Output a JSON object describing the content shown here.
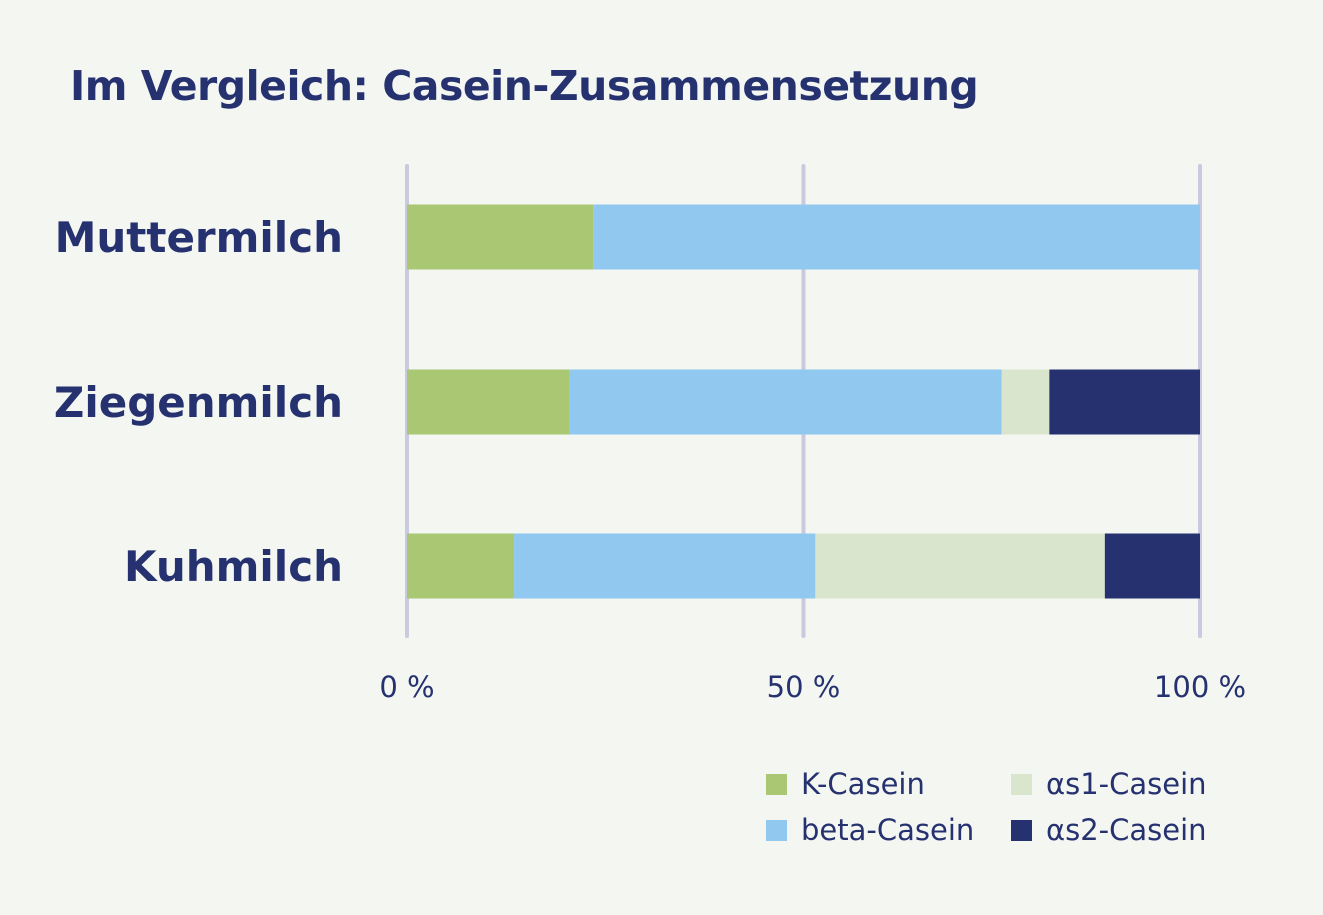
{
  "chart_data": {
    "type": "bar",
    "orientation": "horizontal",
    "stacked": true,
    "title": "Im Vergleich: Casein-Zusammensetzung",
    "categories": [
      "Muttermilch",
      "Ziegenmilch",
      "Kuhmilch"
    ],
    "series": [
      {
        "name": "K-Casein",
        "color": "#aac774",
        "values": [
          23.5,
          20.5,
          13.5
        ]
      },
      {
        "name": "beta-Casein",
        "color": "#91c8f0",
        "values": [
          76.5,
          54.5,
          38
        ]
      },
      {
        "name": "αs1-Casein",
        "color": "#d9e6cd",
        "values": [
          0,
          6,
          36.5
        ]
      },
      {
        "name": "αs2-Casein",
        "color": "#263270",
        "values": [
          0,
          19,
          12
        ]
      }
    ],
    "xlim": [
      0,
      100
    ],
    "xticks": [
      {
        "value": 0,
        "label": "0 %"
      },
      {
        "value": 50,
        "label": "50 %"
      },
      {
        "value": 100,
        "label": "100 %"
      }
    ],
    "grid": true,
    "legend_position": "bottom-right"
  }
}
